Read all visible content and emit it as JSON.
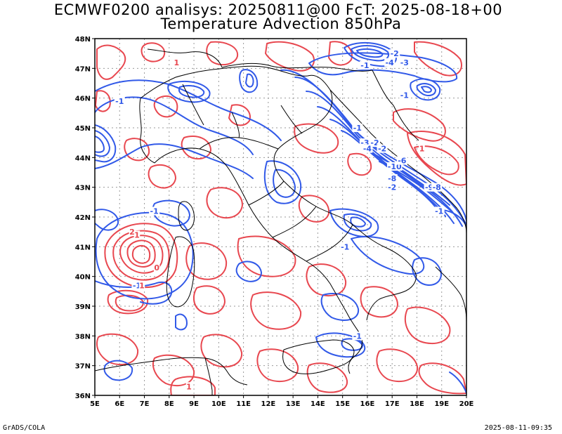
{
  "title": {
    "line1": "ECMWF0200 analisys: 20250811@00 FcT: 2025-08-18+00",
    "line2": "Temperature Advection 850hPa"
  },
  "footer": {
    "left": "GrADS/COLA",
    "right": "2025-08-11-09:35"
  },
  "map": {
    "lat_ticks": [
      "48N",
      "47N",
      "46N",
      "45N",
      "44N",
      "43N",
      "42N",
      "41N",
      "40N",
      "39N",
      "38N",
      "37N",
      "36N"
    ],
    "lon_ticks": [
      "5E",
      "6E",
      "7E",
      "8E",
      "9E",
      "10E",
      "11E",
      "12E",
      "13E",
      "14E",
      "15E",
      "16E",
      "17E",
      "18E",
      "19E",
      "20E"
    ],
    "lat_range": [
      36,
      48
    ],
    "lon_range": [
      5,
      20
    ],
    "colors": {
      "positive_contour": "#e8474f",
      "negative_contour": "#3159e8",
      "coastline": "#000000",
      "grid": "#999999"
    },
    "contour_labels": [
      {
        "text": "-1",
        "color": "negative",
        "lon": 15.9,
        "lat": 47.1
      },
      {
        "text": "-2",
        "color": "negative",
        "lon": 17.1,
        "lat": 47.5
      },
      {
        "text": "-4",
        "color": "negative",
        "lon": 16.9,
        "lat": 47.2
      },
      {
        "text": "-3",
        "color": "negative",
        "lon": 17.5,
        "lat": 47.2
      },
      {
        "text": "-1",
        "color": "negative",
        "lon": 17.5,
        "lat": 46.1
      },
      {
        "text": "-1",
        "color": "negative",
        "lon": 6.0,
        "lat": 45.9
      },
      {
        "text": "-1",
        "color": "negative",
        "lon": 15.6,
        "lat": 45.0
      },
      {
        "text": "-3",
        "color": "negative",
        "lon": 15.9,
        "lat": 44.5
      },
      {
        "text": "-2",
        "color": "negative",
        "lon": 16.3,
        "lat": 44.5
      },
      {
        "text": "-2",
        "color": "negative",
        "lon": 16.6,
        "lat": 44.3
      },
      {
        "text": "-4",
        "color": "negative",
        "lon": 16.0,
        "lat": 44.3
      },
      {
        "text": "-10",
        "color": "negative",
        "lon": 17.1,
        "lat": 43.7
      },
      {
        "text": "-6",
        "color": "negative",
        "lon": 17.4,
        "lat": 43.9
      },
      {
        "text": "-8",
        "color": "negative",
        "lon": 17.0,
        "lat": 43.3
      },
      {
        "text": "-2",
        "color": "negative",
        "lon": 17.0,
        "lat": 43.0
      },
      {
        "text": "-9",
        "color": "negative",
        "lon": 18.5,
        "lat": 43.0
      },
      {
        "text": "-8",
        "color": "negative",
        "lon": 18.8,
        "lat": 43.0
      },
      {
        "text": "-1",
        "color": "negative",
        "lon": 7.4,
        "lat": 42.2
      },
      {
        "text": "-1",
        "color": "negative",
        "lon": 18.9,
        "lat": 42.2
      },
      {
        "text": "-1",
        "color": "negative",
        "lon": 15.1,
        "lat": 41.0
      },
      {
        "text": "-1",
        "color": "negative",
        "lon": 6.7,
        "lat": 39.7
      },
      {
        "text": "1",
        "color": "positive",
        "lon": 6.9,
        "lat": 39.7
      },
      {
        "text": "-1",
        "color": "negative",
        "lon": 15.6,
        "lat": 38.0
      },
      {
        "text": "1",
        "color": "positive",
        "lon": 8.3,
        "lat": 47.2
      },
      {
        "text": "1",
        "color": "positive",
        "lon": 18.2,
        "lat": 44.3
      },
      {
        "text": "1",
        "color": "positive",
        "lon": 6.7,
        "lat": 41.4
      },
      {
        "text": "2",
        "color": "positive",
        "lon": 6.5,
        "lat": 41.5
      },
      {
        "text": "1",
        "color": "positive",
        "lon": 8.8,
        "lat": 36.3
      },
      {
        "text": "0",
        "color": "positive",
        "lon": 7.5,
        "lat": 40.3
      }
    ]
  }
}
